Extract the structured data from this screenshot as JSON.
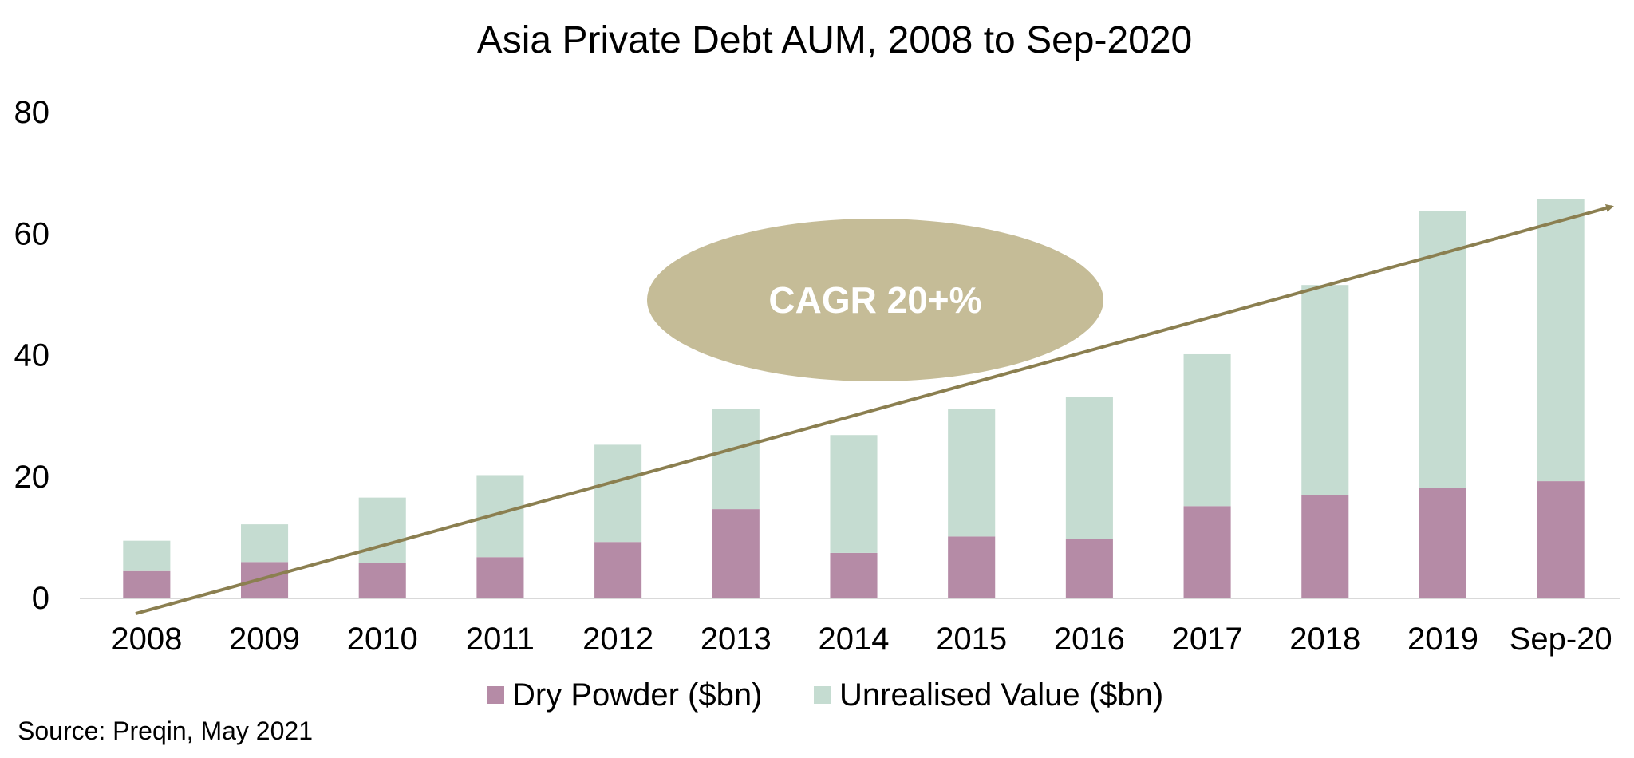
{
  "chart_data": {
    "type": "bar",
    "stacked": true,
    "title": "Asia Private Debt AUM, 2008 to Sep-2020",
    "categories": [
      "2008",
      "2009",
      "2010",
      "2011",
      "2012",
      "2013",
      "2014",
      "2015",
      "2016",
      "2017",
      "2018",
      "2019",
      "Sep-20"
    ],
    "series": [
      {
        "name": "Dry Powder ($bn)",
        "color": "#b58ba6",
        "values": [
          4.5,
          6,
          5.8,
          6.8,
          9.3,
          14.7,
          7.5,
          10.2,
          9.8,
          15.2,
          17,
          18.2,
          19.3
        ]
      },
      {
        "name": "Unrealised Value ($bn)",
        "color": "#c5dcd1",
        "values": [
          5,
          6.2,
          10.8,
          13.5,
          16,
          16.5,
          19.4,
          21,
          23.4,
          25,
          34.6,
          45.6,
          46.5
        ]
      }
    ],
    "ylim": [
      0,
      80
    ],
    "yticks": [
      0,
      20,
      40,
      60,
      80
    ],
    "grid": false,
    "legend_position": "bottom",
    "annotation": {
      "text": "CAGR 20+%",
      "trend_start": -2.5,
      "trend_end": 64.5,
      "arrow_color": "#8b7f50",
      "ellipse_color": "#c5bc97"
    },
    "source": "Source: Preqin, May 2021"
  }
}
